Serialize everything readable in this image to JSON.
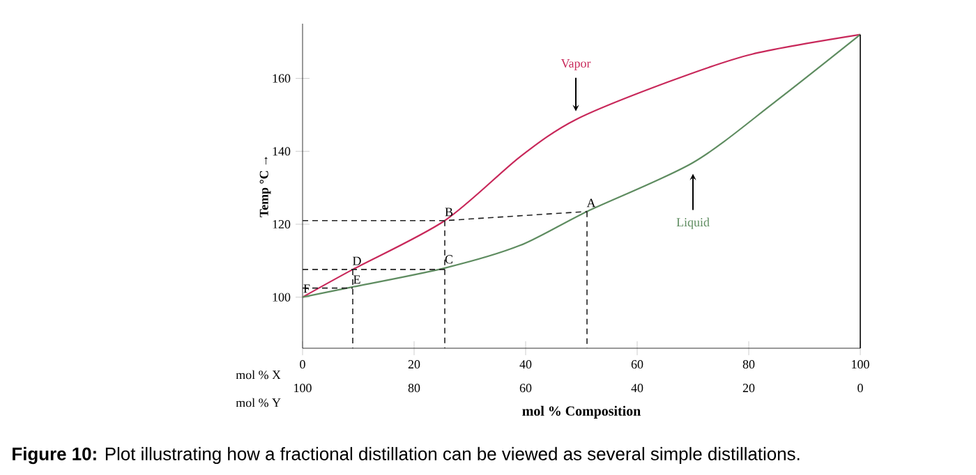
{
  "chart_data": {
    "type": "line",
    "xlabel": "mol % Composition",
    "ylabel": "Temp °C →",
    "xlim": [
      0,
      100
    ],
    "ylim": [
      86,
      175
    ],
    "xticks": [
      0,
      20,
      40,
      60,
      80,
      100
    ],
    "x2lim": [
      100,
      0
    ],
    "x2ticks": [
      100,
      80,
      60,
      40,
      20,
      0
    ],
    "yticks": [
      100,
      120,
      140,
      160
    ],
    "grid": false,
    "legend": false,
    "marker": "none",
    "series": [
      {
        "name": "Vapor",
        "color": "#c8285a",
        "line_style": "solid",
        "x": [
          0,
          9,
          25.5,
          39,
          49,
          65.5,
          80.5,
          100
        ],
        "values": [
          100,
          107.6,
          121,
          138.5,
          148.7,
          159,
          166.6,
          172
        ]
      },
      {
        "name": "Liquid",
        "color": "#5e8c60",
        "line_style": "solid",
        "x": [
          0,
          8,
          25.5,
          39,
          51,
          70,
          84.5,
          100
        ],
        "values": [
          100,
          102.5,
          108,
          114.2,
          123.5,
          136.9,
          153.3,
          172
        ]
      },
      {
        "color": "#222222",
        "line_style": "dashed",
        "x": [
          0,
          25.5,
          51
        ],
        "values": [
          121,
          121,
          123.5
        ]
      },
      {
        "color": "#222222",
        "line_style": "dashed",
        "x": [
          51,
          51
        ],
        "values": [
          123.5,
          86
        ]
      },
      {
        "color": "#222222",
        "line_style": "dashed",
        "x": [
          25.5,
          25.5
        ],
        "values": [
          121,
          86
        ]
      },
      {
        "color": "#222222",
        "line_style": "dashed",
        "x": [
          0,
          25.5
        ],
        "values": [
          107.6,
          107.6
        ]
      },
      {
        "color": "#222222",
        "line_style": "dashed",
        "x": [
          9,
          9
        ],
        "values": [
          107.6,
          86
        ]
      },
      {
        "color": "#222222",
        "line_style": "dashed",
        "x": [
          0,
          9
        ],
        "values": [
          102.5,
          102.5
        ]
      }
    ],
    "annotations": [
      "mol % X",
      "mol % Y",
      "**Figure 10:** Plot illustrating how a fractional distillation can be viewed as several simple distillations.",
      {
        "text": "A",
        "x": 51,
        "y": 123.5
      },
      {
        "text": "B",
        "x": 25.5,
        "y": 121
      },
      {
        "text": "C",
        "x": 25.5,
        "y": 108
      },
      {
        "text": "D",
        "x": 9,
        "y": 107.6
      },
      {
        "text": "E",
        "x": 9,
        "y": 102.5
      },
      {
        "text": "F",
        "x": 0,
        "y": 100
      }
    ]
  }
}
